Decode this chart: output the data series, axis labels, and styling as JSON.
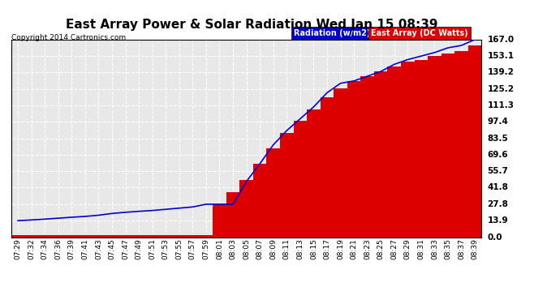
{
  "title": "East Array Power & Solar Radiation Wed Jan 15 08:39",
  "copyright": "Copyright 2014 Cartronics.com",
  "legend_radiation": "Radiation (w/m2)",
  "legend_east": "East Array (DC Watts)",
  "ylabel_values": [
    0.0,
    13.9,
    27.8,
    41.8,
    55.7,
    69.6,
    83.5,
    97.4,
    111.3,
    125.2,
    139.2,
    153.1,
    167.0
  ],
  "ylim": [
    0.0,
    167.0
  ],
  "background_color": "#ffffff",
  "plot_bg_color": "#e8e8e8",
  "bar_color": "#dd0000",
  "radiation_color": "#0000cc",
  "grid_color": "#ffffff",
  "x_labels": [
    "07:29",
    "07:32",
    "07:34",
    "07:36",
    "07:39",
    "07:41",
    "07:43",
    "07:45",
    "07:47",
    "07:49",
    "07:51",
    "07:53",
    "07:55",
    "07:57",
    "07:59",
    "08:01",
    "08:03",
    "08:05",
    "08:07",
    "08:09",
    "08:11",
    "08:13",
    "08:15",
    "08:17",
    "08:19",
    "08:21",
    "08:23",
    "08:25",
    "08:27",
    "08:29",
    "08:31",
    "08:33",
    "08:35",
    "08:37",
    "08:39"
  ],
  "east_array_bars": [
    2.0,
    2.0,
    2.0,
    2.0,
    2.0,
    2.0,
    2.0,
    2.0,
    2.0,
    2.0,
    2.0,
    2.0,
    2.0,
    2.0,
    2.0,
    28.0,
    38.0,
    48.0,
    62.0,
    75.0,
    88.0,
    98.0,
    108.0,
    118.0,
    126.0,
    132.0,
    136.0,
    140.0,
    144.0,
    148.0,
    150.0,
    153.0,
    155.0,
    157.0,
    162.0
  ],
  "radiation_line": [
    13.9,
    14.5,
    15.2,
    16.0,
    16.8,
    17.5,
    18.5,
    20.0,
    21.0,
    21.8,
    22.5,
    23.5,
    24.5,
    25.5,
    27.8,
    27.8,
    27.8,
    47.0,
    62.0,
    78.0,
    90.0,
    100.0,
    110.0,
    122.0,
    130.0,
    132.0,
    136.0,
    140.0,
    146.0,
    150.0,
    153.0,
    156.0,
    160.0,
    162.0,
    167.0
  ],
  "figsize": [
    6.9,
    3.75
  ],
  "dpi": 100
}
